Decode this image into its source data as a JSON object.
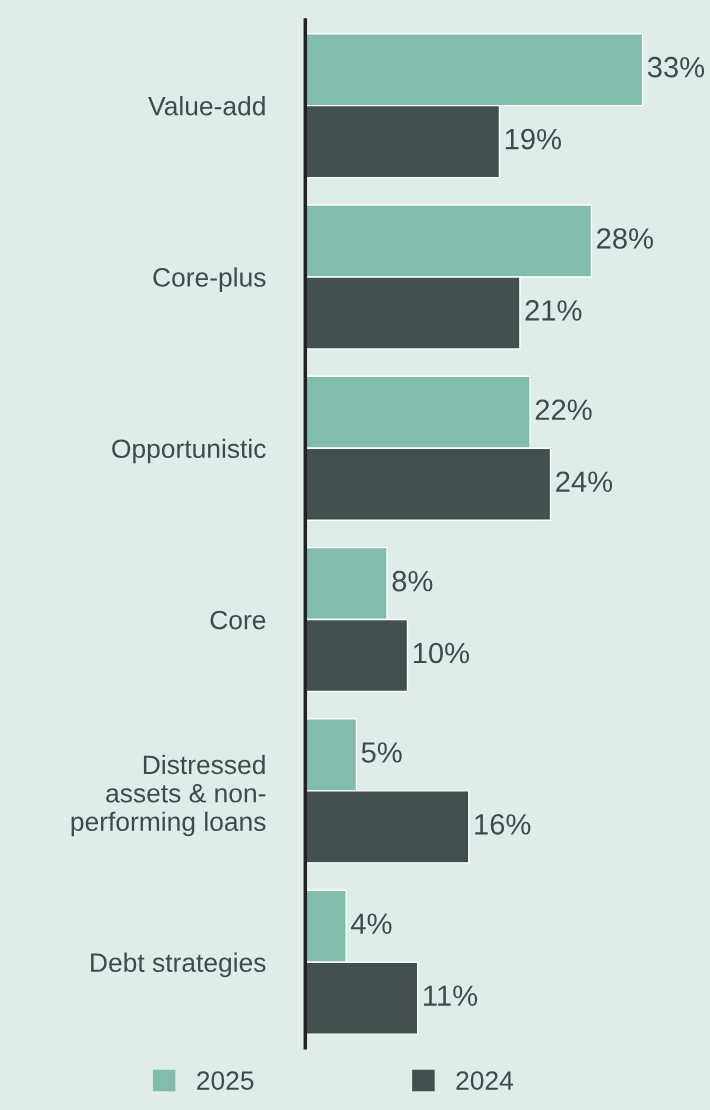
{
  "chart_data": {
    "type": "bar",
    "orientation": "horizontal",
    "categories": [
      "Value-add",
      "Core-plus",
      "Opportunistic",
      "Core",
      "Distressed\nassets & non-\nperforming loans",
      "Debt strategies"
    ],
    "series": [
      {
        "name": "2025",
        "color": "#82bcad",
        "values": [
          33,
          28,
          22,
          8,
          5,
          4
        ],
        "value_labels": [
          "33%",
          "28%",
          "22%",
          "8%",
          "5%",
          "4%"
        ]
      },
      {
        "name": "2024",
        "color": "#435050",
        "values": [
          19,
          21,
          24,
          10,
          16,
          11
        ],
        "value_labels": [
          "19%",
          "21%",
          "24%",
          "10%",
          "16%",
          "11%"
        ]
      }
    ],
    "tick_labels": "y",
    "legend": "bottom"
  }
}
